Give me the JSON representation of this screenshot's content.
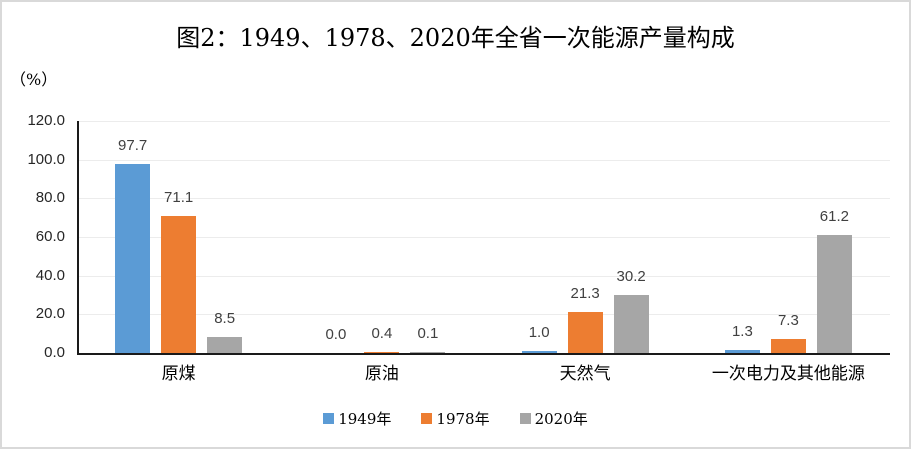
{
  "chart_data": {
    "type": "bar",
    "title": "图2：1949、1978、2020年全省一次能源产量构成",
    "ylabel": "（%）",
    "categories": [
      "原煤",
      "原油",
      "天然气",
      "一次电力及其他能源"
    ],
    "series": [
      {
        "name": "1949年",
        "color": "#5B9BD5",
        "values": [
          97.7,
          0.0,
          1.0,
          1.3
        ]
      },
      {
        "name": "1978年",
        "color": "#ED7D31",
        "values": [
          71.1,
          0.4,
          21.3,
          7.3
        ]
      },
      {
        "name": "2020年",
        "color": "#A6A6A6",
        "values": [
          8.5,
          0.1,
          30.2,
          61.2
        ]
      }
    ],
    "ylim": [
      0,
      120
    ],
    "ytick_step": 20,
    "ytick_labels": [
      "0.0",
      "20.0",
      "40.0",
      "60.0",
      "80.0",
      "100.0",
      "120.0"
    ],
    "grid": true,
    "legend_position": "bottom",
    "data_labels": true
  },
  "colors": {
    "axis": "#1a1a1a",
    "gridline": "#ececec",
    "data_label_text": "#404040",
    "frame_border": "#d9d9d9"
  }
}
